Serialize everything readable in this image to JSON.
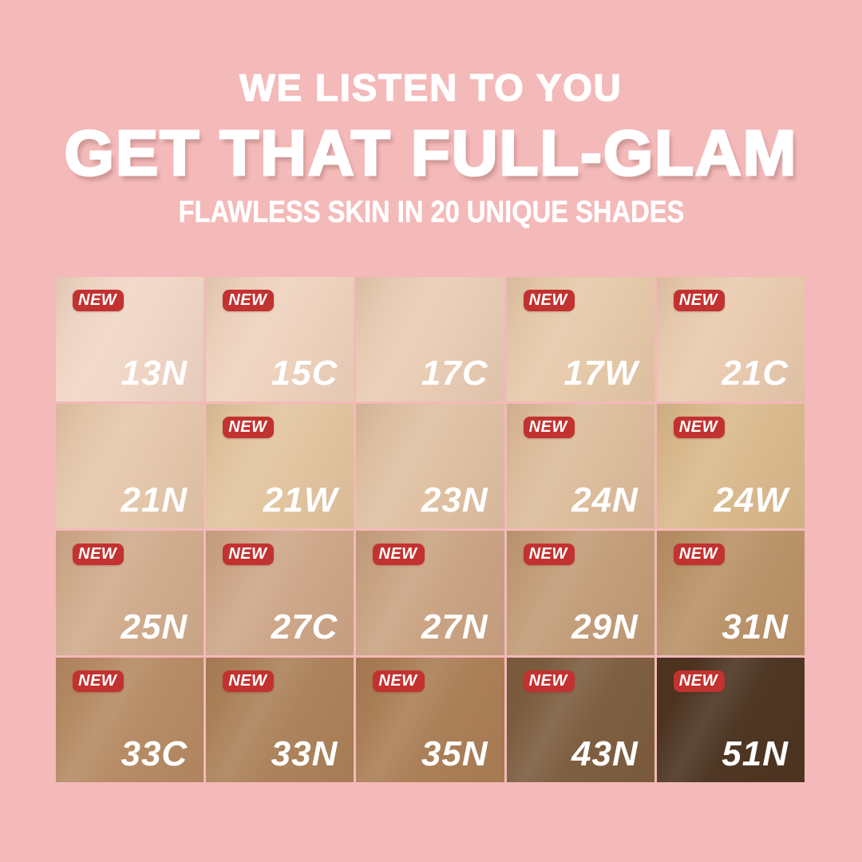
{
  "page": {
    "background_color": "#f4b9b9",
    "badge_color": "#c23230",
    "text_color": "#ffffff"
  },
  "header": {
    "tagline": "WE LISTEN TO YOU",
    "title": "GET THAT FULL-GLAM",
    "subtitle": "FLAWLESS SKIN IN 20 UNIQUE SHADES"
  },
  "grid": {
    "new_badge_label": "NEW",
    "rows": 4,
    "columns": 5,
    "shades": [
      {
        "code": "13N",
        "new": true,
        "color": "#f0d6c5"
      },
      {
        "code": "15C",
        "new": true,
        "color": "#eed2bd"
      },
      {
        "code": "17C",
        "new": false,
        "color": "#e9ccb4"
      },
      {
        "code": "17W",
        "new": true,
        "color": "#e5c9a9"
      },
      {
        "code": "21C",
        "new": true,
        "color": "#e8caae"
      },
      {
        "code": "21N",
        "new": false,
        "color": "#e5c7ab"
      },
      {
        "code": "21W",
        "new": true,
        "color": "#e2c49f"
      },
      {
        "code": "23N",
        "new": false,
        "color": "#dfc0a2"
      },
      {
        "code": "24N",
        "new": true,
        "color": "#dcbc9b"
      },
      {
        "code": "24W",
        "new": true,
        "color": "#d9b98c"
      },
      {
        "code": "25N",
        "new": true,
        "color": "#d0ab8c"
      },
      {
        "code": "27C",
        "new": true,
        "color": "#cda688"
      },
      {
        "code": "27N",
        "new": true,
        "color": "#c9a382"
      },
      {
        "code": "29N",
        "new": true,
        "color": "#c29c77"
      },
      {
        "code": "31N",
        "new": true,
        "color": "#b99268"
      },
      {
        "code": "33C",
        "new": true,
        "color": "#b58a63"
      },
      {
        "code": "33N",
        "new": true,
        "color": "#ab8159"
      },
      {
        "code": "35N",
        "new": true,
        "color": "#aa7e55"
      },
      {
        "code": "43N",
        "new": true,
        "color": "#7c5c3e"
      },
      {
        "code": "51N",
        "new": true,
        "color": "#4b3320"
      }
    ]
  }
}
